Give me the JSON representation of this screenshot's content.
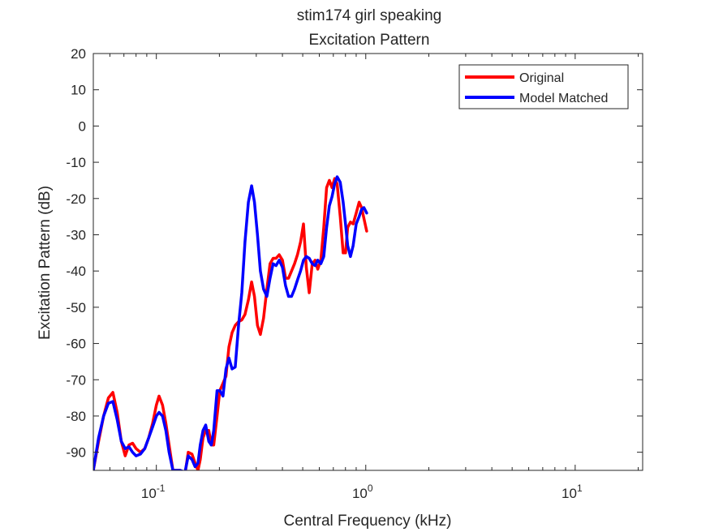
{
  "chart_data": {
    "type": "line",
    "title": "stim174 girl speaking",
    "subtitle": "Excitation Pattern",
    "xlabel": "Central Frequency (kHz)",
    "ylabel": "Excitation Pattern (dB)",
    "xscale": "log",
    "xlim": [
      0.05,
      21
    ],
    "ylim": [
      -95,
      20
    ],
    "yticks": [
      20,
      10,
      0,
      -10,
      -20,
      -30,
      -40,
      -50,
      -60,
      -70,
      -80,
      -90
    ],
    "xticks": [
      {
        "value": 0.1,
        "base": "10",
        "exp": "-1"
      },
      {
        "value": 1,
        "base": "10",
        "exp": "0"
      },
      {
        "value": 10,
        "base": "10",
        "exp": "1"
      }
    ],
    "legend_position": "top-right",
    "grid": false,
    "series": [
      {
        "name": "Original",
        "color": "#ff0000",
        "points": [
          [
            0.05,
            -95
          ],
          [
            0.053,
            -87
          ],
          [
            0.056,
            -80
          ],
          [
            0.059,
            -75
          ],
          [
            0.062,
            -73.5
          ],
          [
            0.065,
            -79
          ],
          [
            0.068,
            -87
          ],
          [
            0.071,
            -91
          ],
          [
            0.074,
            -88
          ],
          [
            0.077,
            -87.5
          ],
          [
            0.08,
            -89
          ],
          [
            0.084,
            -90
          ],
          [
            0.088,
            -89
          ],
          [
            0.092,
            -86
          ],
          [
            0.096,
            -82
          ],
          [
            0.1,
            -77
          ],
          [
            0.103,
            -74.5
          ],
          [
            0.107,
            -77
          ],
          [
            0.111,
            -82
          ],
          [
            0.115,
            -88
          ],
          [
            0.12,
            -95
          ],
          [
            0.13,
            -95
          ],
          [
            0.137,
            -96
          ],
          [
            0.142,
            -90
          ],
          [
            0.148,
            -90.5
          ],
          [
            0.153,
            -93
          ],
          [
            0.158,
            -95
          ],
          [
            0.162,
            -92
          ],
          [
            0.167,
            -86
          ],
          [
            0.172,
            -84
          ],
          [
            0.178,
            -84
          ],
          [
            0.183,
            -88
          ],
          [
            0.188,
            -88
          ],
          [
            0.195,
            -80
          ],
          [
            0.201,
            -73
          ],
          [
            0.208,
            -71
          ],
          [
            0.215,
            -69
          ],
          [
            0.222,
            -61
          ],
          [
            0.23,
            -57
          ],
          [
            0.238,
            -55
          ],
          [
            0.247,
            -54
          ],
          [
            0.256,
            -53.5
          ],
          [
            0.265,
            -52
          ],
          [
            0.275,
            -48
          ],
          [
            0.285,
            -43
          ],
          [
            0.294,
            -47
          ],
          [
            0.304,
            -55
          ],
          [
            0.314,
            -57.5
          ],
          [
            0.325,
            -53
          ],
          [
            0.337,
            -45
          ],
          [
            0.349,
            -38
          ],
          [
            0.361,
            -36.5
          ],
          [
            0.373,
            -36.5
          ],
          [
            0.386,
            -35.5
          ],
          [
            0.4,
            -37
          ],
          [
            0.414,
            -42
          ],
          [
            0.428,
            -42
          ],
          [
            0.442,
            -40
          ],
          [
            0.457,
            -38
          ],
          [
            0.472,
            -35.5
          ],
          [
            0.488,
            -32
          ],
          [
            0.504,
            -27
          ],
          [
            0.52,
            -39
          ],
          [
            0.537,
            -46
          ],
          [
            0.555,
            -38
          ],
          [
            0.573,
            -37
          ],
          [
            0.59,
            -39.5
          ],
          [
            0.61,
            -37
          ],
          [
            0.63,
            -28
          ],
          [
            0.65,
            -17
          ],
          [
            0.67,
            -15
          ],
          [
            0.69,
            -17
          ],
          [
            0.71,
            -14.5
          ],
          [
            0.73,
            -16
          ],
          [
            0.755,
            -25
          ],
          [
            0.78,
            -35
          ],
          [
            0.8,
            -35
          ],
          [
            0.82,
            -28
          ],
          [
            0.845,
            -26.5
          ],
          [
            0.87,
            -27
          ],
          [
            0.9,
            -24
          ],
          [
            0.93,
            -21
          ],
          [
            0.955,
            -22.5
          ],
          [
            0.98,
            -25.5
          ],
          [
            1.01,
            -29
          ]
        ]
      },
      {
        "name": "Model Matched",
        "color": "#0000ff",
        "points": [
          [
            0.05,
            -95
          ],
          [
            0.053,
            -86
          ],
          [
            0.056,
            -80
          ],
          [
            0.059,
            -76.5
          ],
          [
            0.062,
            -76
          ],
          [
            0.065,
            -81
          ],
          [
            0.068,
            -87
          ],
          [
            0.071,
            -89
          ],
          [
            0.074,
            -88.5
          ],
          [
            0.077,
            -90
          ],
          [
            0.08,
            -91
          ],
          [
            0.084,
            -90.5
          ],
          [
            0.088,
            -89
          ],
          [
            0.092,
            -86
          ],
          [
            0.096,
            -83
          ],
          [
            0.1,
            -80
          ],
          [
            0.103,
            -79
          ],
          [
            0.107,
            -80
          ],
          [
            0.111,
            -84
          ],
          [
            0.115,
            -90
          ],
          [
            0.12,
            -95
          ],
          [
            0.13,
            -95
          ],
          [
            0.137,
            -95.5
          ],
          [
            0.142,
            -91
          ],
          [
            0.148,
            -92
          ],
          [
            0.153,
            -94
          ],
          [
            0.158,
            -93
          ],
          [
            0.162,
            -88
          ],
          [
            0.167,
            -84
          ],
          [
            0.172,
            -82.5
          ],
          [
            0.178,
            -87
          ],
          [
            0.183,
            -88
          ],
          [
            0.188,
            -84
          ],
          [
            0.195,
            -73
          ],
          [
            0.201,
            -73
          ],
          [
            0.208,
            -74.5
          ],
          [
            0.215,
            -67
          ],
          [
            0.222,
            -64
          ],
          [
            0.23,
            -67
          ],
          [
            0.238,
            -66.5
          ],
          [
            0.247,
            -55
          ],
          [
            0.256,
            -46
          ],
          [
            0.265,
            -32
          ],
          [
            0.275,
            -21
          ],
          [
            0.285,
            -16.5
          ],
          [
            0.294,
            -21
          ],
          [
            0.304,
            -30
          ],
          [
            0.314,
            -40
          ],
          [
            0.325,
            -45
          ],
          [
            0.337,
            -47
          ],
          [
            0.349,
            -42
          ],
          [
            0.361,
            -38
          ],
          [
            0.373,
            -38.5
          ],
          [
            0.386,
            -37
          ],
          [
            0.4,
            -39
          ],
          [
            0.414,
            -44
          ],
          [
            0.428,
            -47
          ],
          [
            0.442,
            -47
          ],
          [
            0.457,
            -45
          ],
          [
            0.472,
            -42.5
          ],
          [
            0.488,
            -40
          ],
          [
            0.504,
            -37
          ],
          [
            0.52,
            -36
          ],
          [
            0.537,
            -36.5
          ],
          [
            0.555,
            -38
          ],
          [
            0.573,
            -38.5
          ],
          [
            0.59,
            -37
          ],
          [
            0.61,
            -38
          ],
          [
            0.63,
            -36
          ],
          [
            0.65,
            -28
          ],
          [
            0.67,
            -22
          ],
          [
            0.69,
            -19.5
          ],
          [
            0.71,
            -16
          ],
          [
            0.73,
            -14
          ],
          [
            0.755,
            -15.5
          ],
          [
            0.78,
            -21
          ],
          [
            0.8,
            -27
          ],
          [
            0.82,
            -33
          ],
          [
            0.845,
            -36
          ],
          [
            0.87,
            -33
          ],
          [
            0.9,
            -27
          ],
          [
            0.93,
            -25
          ],
          [
            0.955,
            -23
          ],
          [
            0.98,
            -22.5
          ],
          [
            1.01,
            -24
          ]
        ]
      }
    ]
  }
}
